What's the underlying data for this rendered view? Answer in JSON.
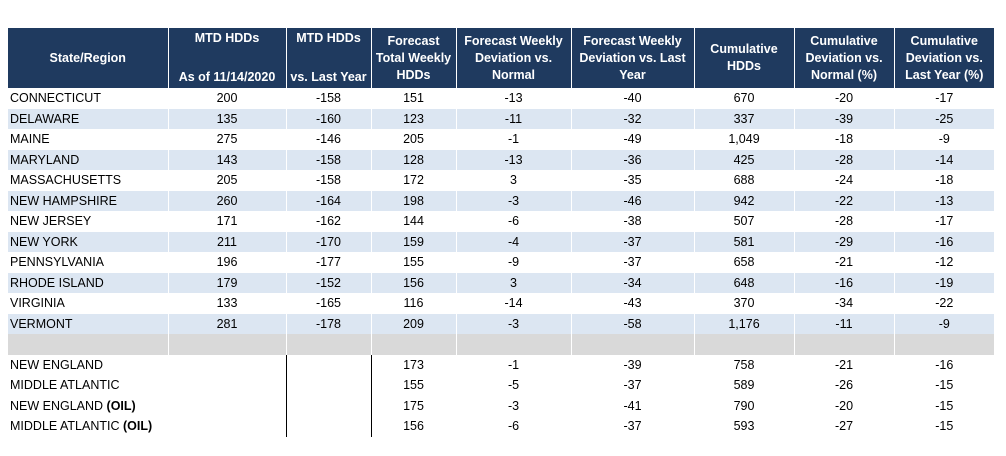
{
  "headers": {
    "state": "State/Region",
    "mtd_top": "MTD HDDs",
    "mtd_bottom": "As of 11/14/2020",
    "mtd_ly_top": "MTD HDDs",
    "mtd_ly_bottom": "vs. Last Year",
    "forecast_total": "Forecast Total Weekly HDDs",
    "dev_normal": "Forecast Weekly Deviation vs. Normal",
    "dev_last_year": "Forecast Weekly Deviation vs. Last Year",
    "cumulative": "Cumulative HDDs",
    "cum_dev_normal": "Cumulative Deviation vs. Normal (%)",
    "cum_dev_last_year": "Cumulative Deviation vs. Last Year (%)"
  },
  "states": [
    {
      "name": "CONNECTICUT",
      "mtd": "200",
      "mtd_ly": "-158",
      "fc_total": "151",
      "fc_dev_normal": "-13",
      "fc_dev_ly": "-40",
      "cum": "670",
      "cum_dev_normal": "-20",
      "cum_dev_ly": "-17"
    },
    {
      "name": "DELAWARE",
      "mtd": "135",
      "mtd_ly": "-160",
      "fc_total": "123",
      "fc_dev_normal": "-11",
      "fc_dev_ly": "-32",
      "cum": "337",
      "cum_dev_normal": "-39",
      "cum_dev_ly": "-25"
    },
    {
      "name": "MAINE",
      "mtd": "275",
      "mtd_ly": "-146",
      "fc_total": "205",
      "fc_dev_normal": "-1",
      "fc_dev_ly": "-49",
      "cum": "1,049",
      "cum_dev_normal": "-18",
      "cum_dev_ly": "-9"
    },
    {
      "name": "MARYLAND",
      "mtd": "143",
      "mtd_ly": "-158",
      "fc_total": "128",
      "fc_dev_normal": "-13",
      "fc_dev_ly": "-36",
      "cum": "425",
      "cum_dev_normal": "-28",
      "cum_dev_ly": "-14"
    },
    {
      "name": "MASSACHUSETTS",
      "mtd": "205",
      "mtd_ly": "-158",
      "fc_total": "172",
      "fc_dev_normal": "3",
      "fc_dev_ly": "-35",
      "cum": "688",
      "cum_dev_normal": "-24",
      "cum_dev_ly": "-18"
    },
    {
      "name": "NEW HAMPSHIRE",
      "mtd": "260",
      "mtd_ly": "-164",
      "fc_total": "198",
      "fc_dev_normal": "-3",
      "fc_dev_ly": "-46",
      "cum": "942",
      "cum_dev_normal": "-22",
      "cum_dev_ly": "-13"
    },
    {
      "name": "NEW JERSEY",
      "mtd": "171",
      "mtd_ly": "-162",
      "fc_total": "144",
      "fc_dev_normal": "-6",
      "fc_dev_ly": "-38",
      "cum": "507",
      "cum_dev_normal": "-28",
      "cum_dev_ly": "-17"
    },
    {
      "name": "NEW YORK",
      "mtd": "211",
      "mtd_ly": "-170",
      "fc_total": "159",
      "fc_dev_normal": "-4",
      "fc_dev_ly": "-37",
      "cum": "581",
      "cum_dev_normal": "-29",
      "cum_dev_ly": "-16"
    },
    {
      "name": "PENNSYLVANIA",
      "mtd": "196",
      "mtd_ly": "-177",
      "fc_total": "155",
      "fc_dev_normal": "-9",
      "fc_dev_ly": "-37",
      "cum": "658",
      "cum_dev_normal": "-21",
      "cum_dev_ly": "-12"
    },
    {
      "name": "RHODE ISLAND",
      "mtd": "179",
      "mtd_ly": "-152",
      "fc_total": "156",
      "fc_dev_normal": "3",
      "fc_dev_ly": "-34",
      "cum": "648",
      "cum_dev_normal": "-16",
      "cum_dev_ly": "-19"
    },
    {
      "name": "VIRGINIA",
      "mtd": "133",
      "mtd_ly": "-165",
      "fc_total": "116",
      "fc_dev_normal": "-14",
      "fc_dev_ly": "-43",
      "cum": "370",
      "cum_dev_normal": "-34",
      "cum_dev_ly": "-22"
    },
    {
      "name": "VERMONT",
      "mtd": "281",
      "mtd_ly": "-178",
      "fc_total": "209",
      "fc_dev_normal": "-3",
      "fc_dev_ly": "-58",
      "cum": "1,176",
      "cum_dev_normal": "-11",
      "cum_dev_ly": "-9"
    }
  ],
  "regions": [
    {
      "name": "NEW ENGLAND",
      "suffix": "",
      "fc_total": "173",
      "fc_dev_normal": "-1",
      "fc_dev_ly": "-39",
      "cum": "758",
      "cum_dev_normal": "-21",
      "cum_dev_ly": "-16"
    },
    {
      "name": "MIDDLE ATLANTIC",
      "suffix": "",
      "fc_total": "155",
      "fc_dev_normal": "-5",
      "fc_dev_ly": "-37",
      "cum": "589",
      "cum_dev_normal": "-26",
      "cum_dev_ly": "-15"
    },
    {
      "name": "NEW ENGLAND ",
      "suffix": "(OIL)",
      "fc_total": "175",
      "fc_dev_normal": "-3",
      "fc_dev_ly": "-41",
      "cum": "790",
      "cum_dev_normal": "-20",
      "cum_dev_ly": "-15"
    },
    {
      "name": "MIDDLE ATLANTIC ",
      "suffix": "(OIL)",
      "fc_total": "156",
      "fc_dev_normal": "-6",
      "fc_dev_ly": "-37",
      "cum": "593",
      "cum_dev_normal": "-27",
      "cum_dev_ly": "-15"
    }
  ],
  "colors": {
    "header_bg": "#1f3a5f",
    "alt_row_bg": "#dce6f2",
    "separator_bg": "#d9d9d9"
  }
}
